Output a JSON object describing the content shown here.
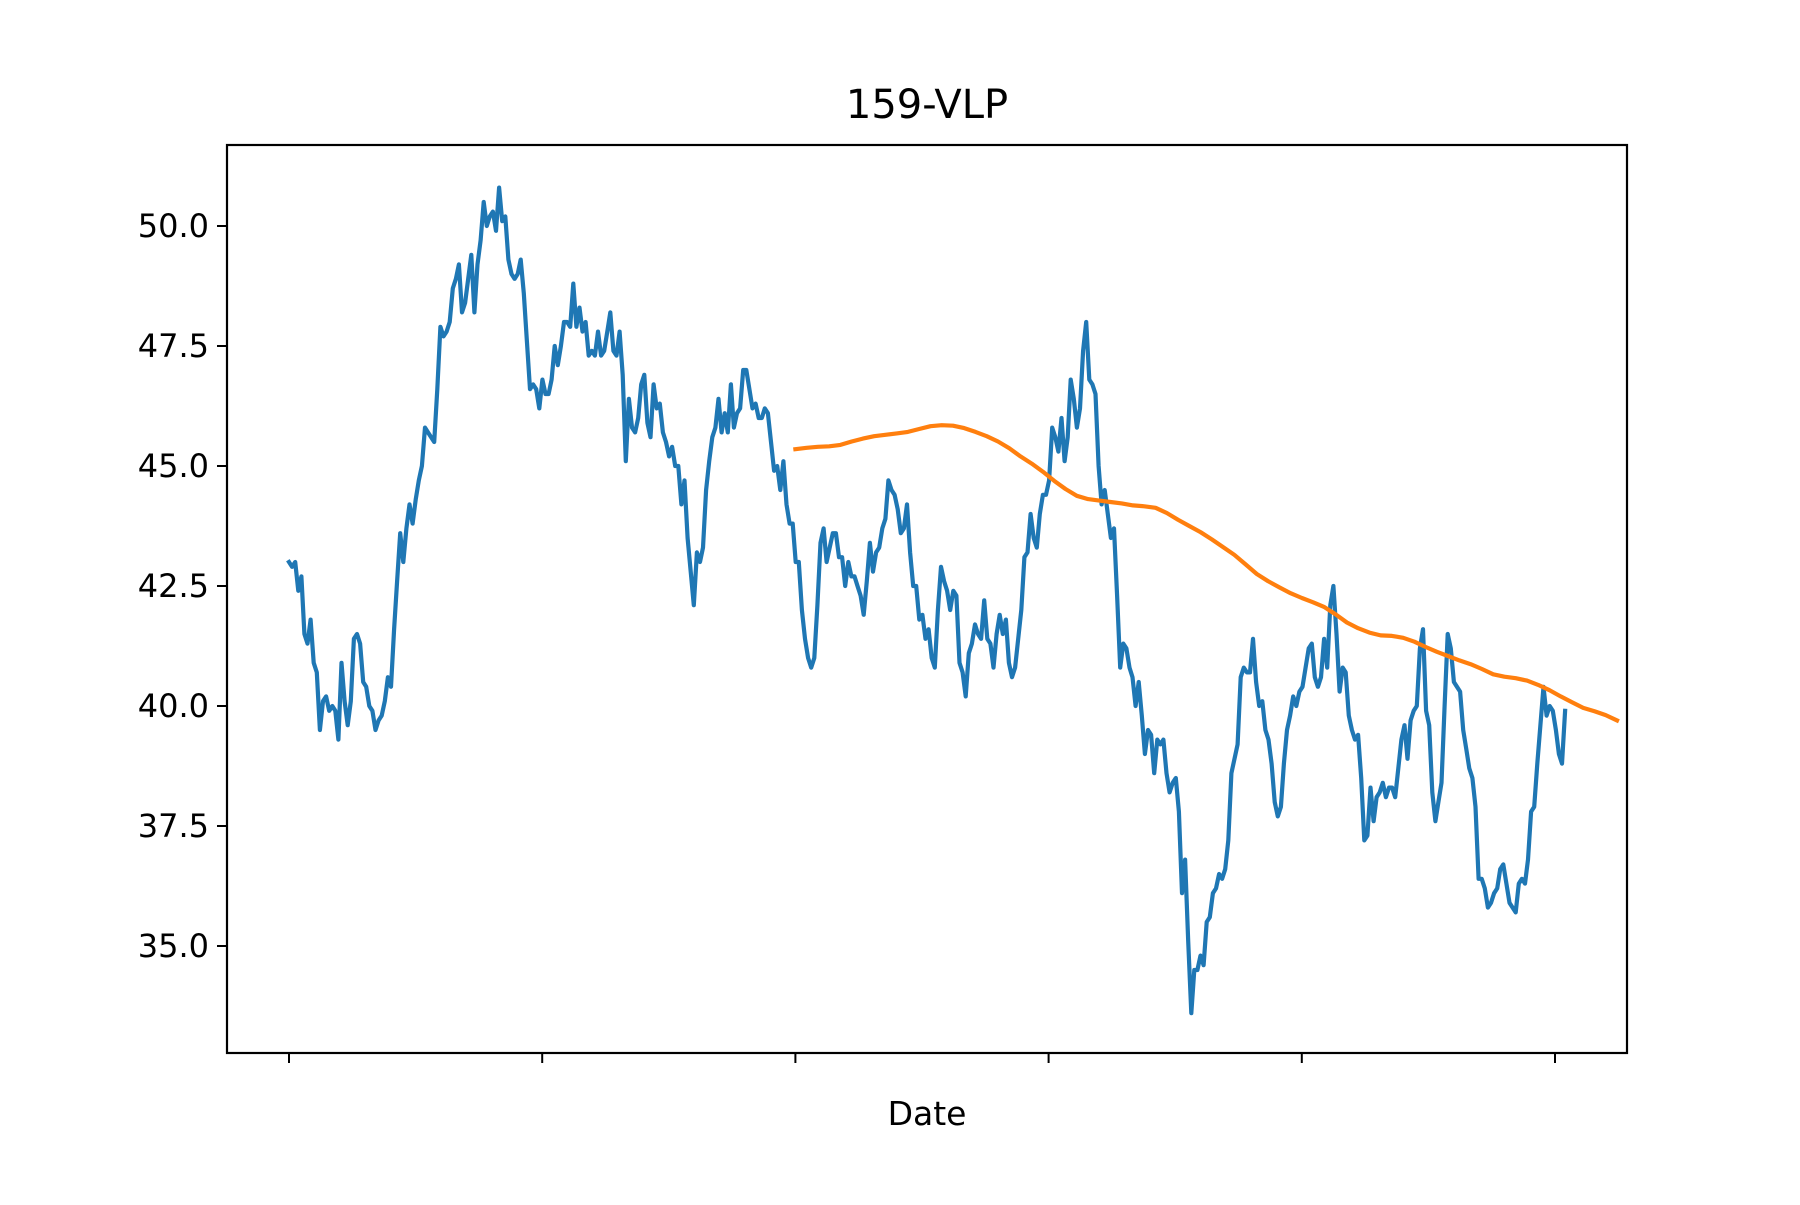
{
  "chart_data": {
    "type": "line",
    "title": "159-VLP",
    "xlabel": "Date",
    "ylabel": "",
    "ylim": [
      32.3,
      51.7
    ],
    "yticks": [
      35.0,
      37.5,
      40.0,
      42.5,
      45.0,
      47.5,
      50.0
    ],
    "ytick_labels": [
      "35.0",
      "37.5",
      "40.0",
      "42.5",
      "45.0",
      "47.5",
      "50.0"
    ],
    "xlim": [
      -25,
      530
    ],
    "xticks": [
      0,
      100,
      200,
      300,
      400,
      500
    ],
    "xtick_labels": [
      "",
      "",
      "",
      "",
      "",
      ""
    ],
    "grid": false,
    "legend": "none",
    "series": [
      {
        "color": "#1f77b4",
        "values": [
          43.0,
          42.9,
          43.0,
          42.4,
          42.7,
          41.5,
          41.3,
          41.8,
          40.9,
          40.7,
          39.5,
          40.1,
          40.2,
          39.9,
          40.0,
          39.9,
          39.3,
          40.9,
          40.1,
          39.6,
          40.1,
          41.4,
          41.5,
          41.3,
          40.5,
          40.4,
          40.0,
          39.9,
          39.5,
          39.7,
          39.8,
          40.1,
          40.6,
          40.4,
          41.6,
          42.6,
          43.6,
          43.0,
          43.7,
          44.2,
          43.8,
          44.3,
          44.7,
          45.0,
          45.8,
          45.7,
          45.6,
          45.5,
          46.6,
          47.9,
          47.7,
          47.8,
          48.0,
          48.7,
          48.9,
          49.2,
          48.2,
          48.4,
          48.9,
          49.4,
          48.2,
          49.2,
          49.7,
          50.5,
          50.0,
          50.2,
          50.3,
          49.9,
          50.8,
          50.1,
          50.2,
          49.3,
          49.0,
          48.9,
          49.0,
          49.3,
          48.6,
          47.6,
          46.6,
          46.7,
          46.6,
          46.2,
          46.8,
          46.5,
          46.5,
          46.8,
          47.5,
          47.1,
          47.5,
          48.0,
          48.0,
          47.9,
          48.8,
          47.9,
          48.3,
          47.8,
          48.0,
          47.3,
          47.4,
          47.3,
          47.8,
          47.3,
          47.4,
          47.8,
          48.2,
          47.4,
          47.3,
          47.8,
          46.9,
          45.1,
          46.4,
          45.8,
          45.7,
          46.0,
          46.7,
          46.9,
          45.9,
          45.6,
          46.7,
          46.2,
          46.3,
          45.7,
          45.5,
          45.2,
          45.4,
          45.0,
          45.0,
          44.2,
          44.7,
          43.5,
          42.8,
          42.1,
          43.2,
          43.0,
          43.3,
          44.5,
          45.1,
          45.6,
          45.8,
          46.4,
          45.7,
          46.1,
          45.7,
          46.7,
          45.8,
          46.1,
          46.2,
          47.0,
          47.0,
          46.6,
          46.2,
          46.3,
          46.0,
          46.0,
          46.2,
          46.1,
          45.5,
          44.9,
          45.0,
          44.5,
          45.1,
          44.2,
          43.8,
          43.8,
          43.0,
          43.0,
          42.0,
          41.4,
          41.0,
          40.8,
          41.0,
          42.1,
          43.4,
          43.7,
          43.0,
          43.3,
          43.6,
          43.6,
          43.1,
          43.1,
          42.5,
          43.0,
          42.7,
          42.7,
          42.5,
          42.3,
          41.9,
          42.6,
          43.4,
          42.8,
          43.2,
          43.3,
          43.7,
          43.9,
          44.7,
          44.5,
          44.4,
          44.1,
          43.6,
          43.7,
          44.2,
          43.2,
          42.5,
          42.5,
          41.8,
          41.9,
          41.4,
          41.6,
          41.0,
          40.8,
          42.0,
          42.9,
          42.6,
          42.4,
          42.0,
          42.4,
          42.3,
          40.9,
          40.7,
          40.2,
          41.1,
          41.3,
          41.7,
          41.5,
          41.4,
          42.2,
          41.4,
          41.3,
          40.8,
          41.5,
          41.9,
          41.5,
          41.8,
          40.9,
          40.6,
          40.8,
          41.4,
          42.0,
          43.1,
          43.2,
          44.0,
          43.5,
          43.3,
          44.0,
          44.4,
          44.4,
          44.7,
          45.8,
          45.6,
          45.3,
          46.0,
          45.1,
          45.6,
          46.8,
          46.4,
          45.8,
          46.2,
          47.4,
          48.0,
          46.8,
          46.7,
          46.5,
          45.0,
          44.2,
          44.5,
          44.0,
          43.5,
          43.7,
          42.3,
          40.8,
          41.3,
          41.2,
          40.8,
          40.6,
          40.0,
          40.5,
          39.8,
          39.0,
          39.5,
          39.4,
          38.6,
          39.3,
          39.2,
          39.3,
          38.6,
          38.2,
          38.4,
          38.5,
          37.8,
          36.1,
          36.8,
          35.1,
          33.6,
          34.5,
          34.5,
          34.8,
          34.6,
          35.5,
          35.6,
          36.1,
          36.2,
          36.5,
          36.4,
          36.6,
          37.2,
          38.6,
          38.9,
          39.2,
          40.6,
          40.8,
          40.7,
          40.7,
          41.4,
          40.5,
          40.0,
          40.1,
          39.5,
          39.3,
          38.8,
          38.0,
          37.7,
          37.9,
          38.8,
          39.5,
          39.8,
          40.2,
          40.0,
          40.3,
          40.4,
          40.8,
          41.2,
          41.3,
          40.6,
          40.4,
          40.6,
          41.4,
          40.8,
          42.1,
          42.5,
          41.5,
          40.3,
          40.8,
          40.7,
          39.8,
          39.5,
          39.3,
          39.4,
          38.5,
          37.2,
          37.3,
          38.3,
          37.6,
          38.1,
          38.2,
          38.4,
          38.1,
          38.3,
          38.3,
          38.1,
          38.7,
          39.3,
          39.6,
          38.9,
          39.7,
          39.9,
          40.0,
          41.2,
          41.6,
          39.9,
          39.6,
          38.2,
          37.6,
          38.0,
          38.4,
          40.0,
          41.5,
          41.2,
          40.5,
          40.4,
          40.3,
          39.5,
          39.1,
          38.7,
          38.5,
          37.9,
          36.4,
          36.4,
          36.2,
          35.8,
          35.9,
          36.1,
          36.2,
          36.6,
          36.7,
          36.3,
          35.9,
          35.8,
          35.7,
          36.3,
          36.4,
          36.3,
          36.8,
          37.8,
          37.9,
          38.8,
          39.6,
          40.4,
          39.8,
          40.0,
          39.9,
          39.5,
          39.0,
          38.8,
          39.9
        ]
      },
      {
        "color": "#ff7f0e",
        "points": [
          [
            200,
            45.35
          ],
          [
            205,
            45.38
          ],
          [
            210,
            45.4
          ],
          [
            215,
            45.41
          ],
          [
            220,
            45.44
          ],
          [
            225,
            45.51
          ],
          [
            230,
            45.57
          ],
          [
            235,
            45.62
          ],
          [
            240,
            45.65
          ],
          [
            245,
            45.68
          ],
          [
            250,
            45.71
          ],
          [
            255,
            45.77
          ],
          [
            260,
            45.83
          ],
          [
            265,
            45.85
          ],
          [
            270,
            45.84
          ],
          [
            275,
            45.79
          ],
          [
            280,
            45.71
          ],
          [
            285,
            45.62
          ],
          [
            290,
            45.51
          ],
          [
            295,
            45.37
          ],
          [
            300,
            45.2
          ],
          [
            305,
            45.05
          ],
          [
            310,
            44.88
          ],
          [
            315,
            44.69
          ],
          [
            320,
            44.52
          ],
          [
            325,
            44.38
          ],
          [
            330,
            44.31
          ],
          [
            335,
            44.28
          ],
          [
            340,
            44.25
          ],
          [
            345,
            44.22
          ],
          [
            350,
            44.18
          ],
          [
            355,
            44.16
          ],
          [
            360,
            44.13
          ],
          [
            365,
            44.02
          ],
          [
            370,
            43.88
          ],
          [
            375,
            43.75
          ],
          [
            380,
            43.62
          ],
          [
            385,
            43.47
          ],
          [
            390,
            43.31
          ],
          [
            395,
            43.15
          ],
          [
            400,
            42.95
          ],
          [
            405,
            42.75
          ],
          [
            410,
            42.6
          ],
          [
            415,
            42.47
          ],
          [
            420,
            42.35
          ],
          [
            425,
            42.25
          ],
          [
            430,
            42.16
          ],
          [
            435,
            42.06
          ],
          [
            440,
            41.91
          ],
          [
            445,
            41.74
          ],
          [
            450,
            41.62
          ],
          [
            455,
            41.53
          ],
          [
            460,
            41.47
          ],
          [
            465,
            41.46
          ],
          [
            470,
            41.42
          ],
          [
            475,
            41.34
          ],
          [
            480,
            41.23
          ],
          [
            485,
            41.13
          ],
          [
            490,
            41.04
          ],
          [
            495,
            40.95
          ],
          [
            500,
            40.87
          ],
          [
            505,
            40.77
          ],
          [
            510,
            40.66
          ],
          [
            515,
            40.61
          ],
          [
            520,
            40.58
          ],
          [
            525,
            40.53
          ],
          [
            530,
            40.44
          ],
          [
            535,
            40.33
          ],
          [
            540,
            40.2
          ],
          [
            545,
            40.08
          ],
          [
            550,
            39.96
          ],
          [
            555,
            39.89
          ],
          [
            560,
            39.81
          ],
          [
            565,
            39.7
          ]
        ],
        "x_scale": 0.889
      }
    ]
  }
}
